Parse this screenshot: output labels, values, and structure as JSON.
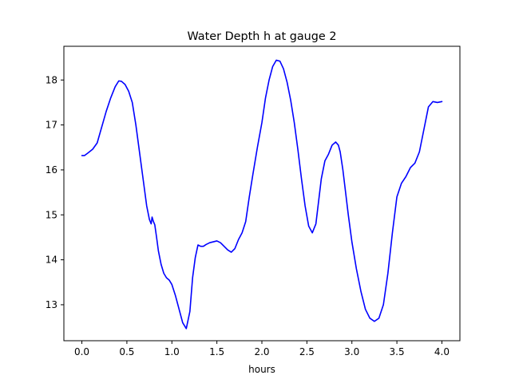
{
  "chart_data": {
    "type": "line",
    "title": "Water Depth h at gauge 2",
    "xlabel": "hours",
    "ylabel": "",
    "xlim": [
      -0.2,
      4.2
    ],
    "ylim": [
      12.2,
      18.75
    ],
    "xticks": [
      0.0,
      0.5,
      1.0,
      1.5,
      2.0,
      2.5,
      3.0,
      3.5,
      4.0
    ],
    "xtick_labels": [
      "0.0",
      "0.5",
      "1.0",
      "1.5",
      "2.0",
      "2.5",
      "3.0",
      "3.5",
      "4.0"
    ],
    "yticks": [
      13,
      14,
      15,
      16,
      17,
      18
    ],
    "ytick_labels": [
      "13",
      "14",
      "15",
      "16",
      "17",
      "18"
    ],
    "grid": false,
    "series": [
      {
        "color": "#0000ff",
        "x": [
          0.0,
          0.03,
          0.07,
          0.12,
          0.17,
          0.22,
          0.27,
          0.32,
          0.37,
          0.41,
          0.44,
          0.48,
          0.52,
          0.56,
          0.6,
          0.64,
          0.68,
          0.72,
          0.75,
          0.77,
          0.78,
          0.795,
          0.81,
          0.83,
          0.85,
          0.88,
          0.91,
          0.94,
          0.97,
          1.0,
          1.04,
          1.08,
          1.12,
          1.16,
          1.2,
          1.23,
          1.26,
          1.29,
          1.32,
          1.35,
          1.38,
          1.42,
          1.46,
          1.5,
          1.54,
          1.58,
          1.62,
          1.66,
          1.7,
          1.74,
          1.78,
          1.82,
          1.86,
          1.9,
          1.95,
          2.0,
          2.04,
          2.08,
          2.12,
          2.16,
          2.2,
          2.24,
          2.28,
          2.32,
          2.36,
          2.4,
          2.44,
          2.48,
          2.52,
          2.56,
          2.6,
          2.63,
          2.66,
          2.7,
          2.74,
          2.78,
          2.82,
          2.85,
          2.87,
          2.9,
          2.93,
          2.96,
          3.0,
          3.05,
          3.1,
          3.15,
          3.2,
          3.25,
          3.3,
          3.35,
          3.4,
          3.45,
          3.5,
          3.55,
          3.6,
          3.65,
          3.7,
          3.75,
          3.8,
          3.85,
          3.9,
          3.95,
          4.0
        ],
        "y": [
          16.32,
          16.32,
          16.38,
          16.46,
          16.6,
          16.95,
          17.3,
          17.6,
          17.85,
          17.98,
          17.97,
          17.9,
          17.75,
          17.5,
          17.0,
          16.4,
          15.8,
          15.2,
          14.9,
          14.8,
          14.95,
          14.85,
          14.78,
          14.5,
          14.2,
          13.9,
          13.7,
          13.6,
          13.55,
          13.45,
          13.2,
          12.9,
          12.6,
          12.47,
          12.85,
          13.6,
          14.05,
          14.33,
          14.3,
          14.3,
          14.34,
          14.38,
          14.4,
          14.42,
          14.38,
          14.3,
          14.22,
          14.17,
          14.25,
          14.45,
          14.6,
          14.85,
          15.4,
          15.9,
          16.5,
          17.05,
          17.6,
          18.0,
          18.3,
          18.44,
          18.42,
          18.25,
          17.95,
          17.55,
          17.05,
          16.45,
          15.8,
          15.2,
          14.75,
          14.6,
          14.8,
          15.3,
          15.8,
          16.2,
          16.35,
          16.55,
          16.62,
          16.55,
          16.4,
          16.0,
          15.5,
          15.0,
          14.4,
          13.8,
          13.3,
          12.9,
          12.7,
          12.63,
          12.7,
          13.0,
          13.7,
          14.6,
          15.4,
          15.7,
          15.85,
          16.05,
          16.15,
          16.4,
          16.9,
          17.4,
          17.52,
          17.5,
          17.52
        ]
      }
    ]
  }
}
